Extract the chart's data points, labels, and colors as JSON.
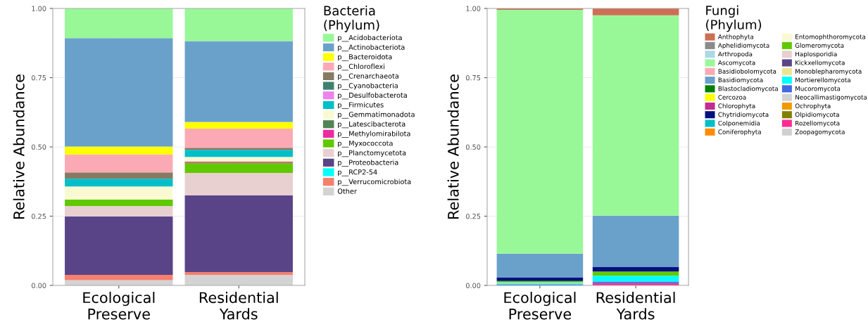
{
  "chart_data": [
    {
      "type": "bar",
      "stacked": true,
      "categories": [
        "Ecological\nPreserve",
        "Residential\nYards"
      ],
      "ylabel": "Relative Abundance",
      "legend_title": "Bacteria\n(Phylum)",
      "legend": "right",
      "grid": true,
      "ylim": [
        0,
        1
      ],
      "yticks": [
        {
          "value": 0,
          "label": "0.00"
        },
        {
          "value": 0.25,
          "label": "0.25"
        },
        {
          "value": 0.5,
          "label": "0.50"
        },
        {
          "value": 0.75,
          "label": "0.75"
        },
        {
          "value": 1,
          "label": "1.00"
        }
      ],
      "series": [
        {
          "name": "Other",
          "color": "#d3d3d3",
          "values": [
            0.019,
            0.038
          ]
        },
        {
          "name": "p__Verrucomicrobiota",
          "color": "#f77f6e",
          "values": [
            0.019,
            0.01
          ]
        },
        {
          "name": "p__RCP2-54",
          "color": "#00ffff",
          "values": [
            0,
            0
          ]
        },
        {
          "name": "p__Proteobacteria",
          "color": "#5a4488",
          "values": [
            0.211,
            0.277
          ]
        },
        {
          "name": "p__Planctomycetota",
          "color": "#e8d0d0",
          "values": [
            0.038,
            0.081
          ]
        },
        {
          "name": "p__Myxococcota",
          "color": "#60c900",
          "values": [
            0.023,
            0.037
          ]
        },
        {
          "name": "p__Methylomirabilota",
          "color": "#ee2aa0",
          "values": [
            0,
            0.004
          ]
        },
        {
          "name": "p__Latescibacterota",
          "color": "#4e8653",
          "values": [
            0,
            0
          ]
        },
        {
          "name": "p__Gemmatimonadota",
          "color": "#fafad2",
          "values": [
            0.047,
            0.017
          ]
        },
        {
          "name": "p__Firmicutes",
          "color": "#00bfc8",
          "values": [
            0.028,
            0.025
          ]
        },
        {
          "name": "p__Desulfobacterota",
          "color": "#ee82ee",
          "values": [
            0,
            0
          ]
        },
        {
          "name": "p__Cyanobacteria",
          "color": "#3d8270",
          "values": [
            0,
            0
          ]
        },
        {
          "name": "p__Crenarchaeota",
          "color": "#877a64",
          "values": [
            0.023,
            0.008
          ]
        },
        {
          "name": "p__Chloroflexi",
          "color": "#fbaab5",
          "values": [
            0.065,
            0.069
          ]
        },
        {
          "name": "p__Bacteroidota",
          "color": "#ffff00",
          "values": [
            0.028,
            0.024
          ]
        },
        {
          "name": "p__Actinobacteriota",
          "color": "#6aa1cb",
          "values": [
            0.392,
            0.292
          ]
        },
        {
          "name": "p__Acidobacteriota",
          "color": "#98f898",
          "values": [
            0.107,
            0.118
          ]
        }
      ]
    },
    {
      "type": "bar",
      "stacked": true,
      "categories": [
        "Ecological\nPreserve",
        "Residential\nYards"
      ],
      "ylabel": "Relative Abundance",
      "legend_title": "Fungi\n(Phylum)",
      "legend": "right",
      "grid": true,
      "ylim": [
        0,
        1
      ],
      "yticks": [
        {
          "value": 0,
          "label": "0.00"
        },
        {
          "value": 0.25,
          "label": "0.25"
        },
        {
          "value": 0.5,
          "label": "0.50"
        },
        {
          "value": 0.75,
          "label": "0.75"
        },
        {
          "value": 1,
          "label": "1.00"
        }
      ],
      "series": [
        {
          "name": "Zoopagomycota",
          "color": "#d0d0d0",
          "values": [
            0,
            0
          ]
        },
        {
          "name": "Rozellomycota",
          "color": "#ff2a91",
          "values": [
            0,
            0.008
          ]
        },
        {
          "name": "Olpidiomycota",
          "color": "#808000",
          "values": [
            0,
            0
          ]
        },
        {
          "name": "Ochrophyta",
          "color": "#f09a00",
          "values": [
            0,
            0
          ]
        },
        {
          "name": "Neocallimastigomycota",
          "color": "#d3d3d3",
          "values": [
            0,
            0
          ]
        },
        {
          "name": "Mucoromycota",
          "color": "#4169e1",
          "values": [
            0.004,
            0.006
          ]
        },
        {
          "name": "Mortierellomycota",
          "color": "#00ffff",
          "values": [
            0.004,
            0.021
          ]
        },
        {
          "name": "Monoblepharomycota",
          "color": "#ece58f",
          "values": [
            0.003,
            0
          ]
        },
        {
          "name": "Kickxellomycota",
          "color": "#5a4488",
          "values": [
            0,
            0
          ]
        },
        {
          "name": "Haplosporidia",
          "color": "#e8d0d0",
          "values": [
            0,
            0
          ]
        },
        {
          "name": "Glomeromycota",
          "color": "#60c900",
          "values": [
            0.005,
            0.015
          ]
        },
        {
          "name": "Entomophthoromycota",
          "color": "#fafad2",
          "values": [
            0,
            0
          ]
        },
        {
          "name": "Coniferophyta",
          "color": "#ff8c00",
          "values": [
            0,
            0
          ]
        },
        {
          "name": "Colponemidia",
          "color": "#00bfc8",
          "values": [
            0,
            0
          ]
        },
        {
          "name": "Chytridiomycota",
          "color": "#00107f",
          "values": [
            0.013,
            0.017
          ]
        },
        {
          "name": "Chlorophyta",
          "color": "#c42b8e",
          "values": [
            0,
            0
          ]
        },
        {
          "name": "Cercozoa",
          "color": "#ffff00",
          "values": [
            0,
            0
          ]
        },
        {
          "name": "Blastocladiomycota",
          "color": "#008000",
          "values": [
            0,
            0
          ]
        },
        {
          "name": "Basidiomycota",
          "color": "#6aa1cb",
          "values": [
            0.086,
            0.185
          ]
        },
        {
          "name": "Basidiobolomycota",
          "color": "#fbaab5",
          "values": [
            0,
            0
          ]
        },
        {
          "name": "Ascomycota",
          "color": "#98f898",
          "values": [
            0.88,
            0.723
          ]
        },
        {
          "name": "Arthropoda",
          "color": "#add8e6",
          "values": [
            0,
            0
          ]
        },
        {
          "name": "Aphelidiomycota",
          "color": "#8b8b8b",
          "values": [
            0,
            0
          ]
        },
        {
          "name": "Anthophyta",
          "color": "#cd6f55",
          "values": [
            0.005,
            0.025
          ]
        }
      ]
    }
  ]
}
